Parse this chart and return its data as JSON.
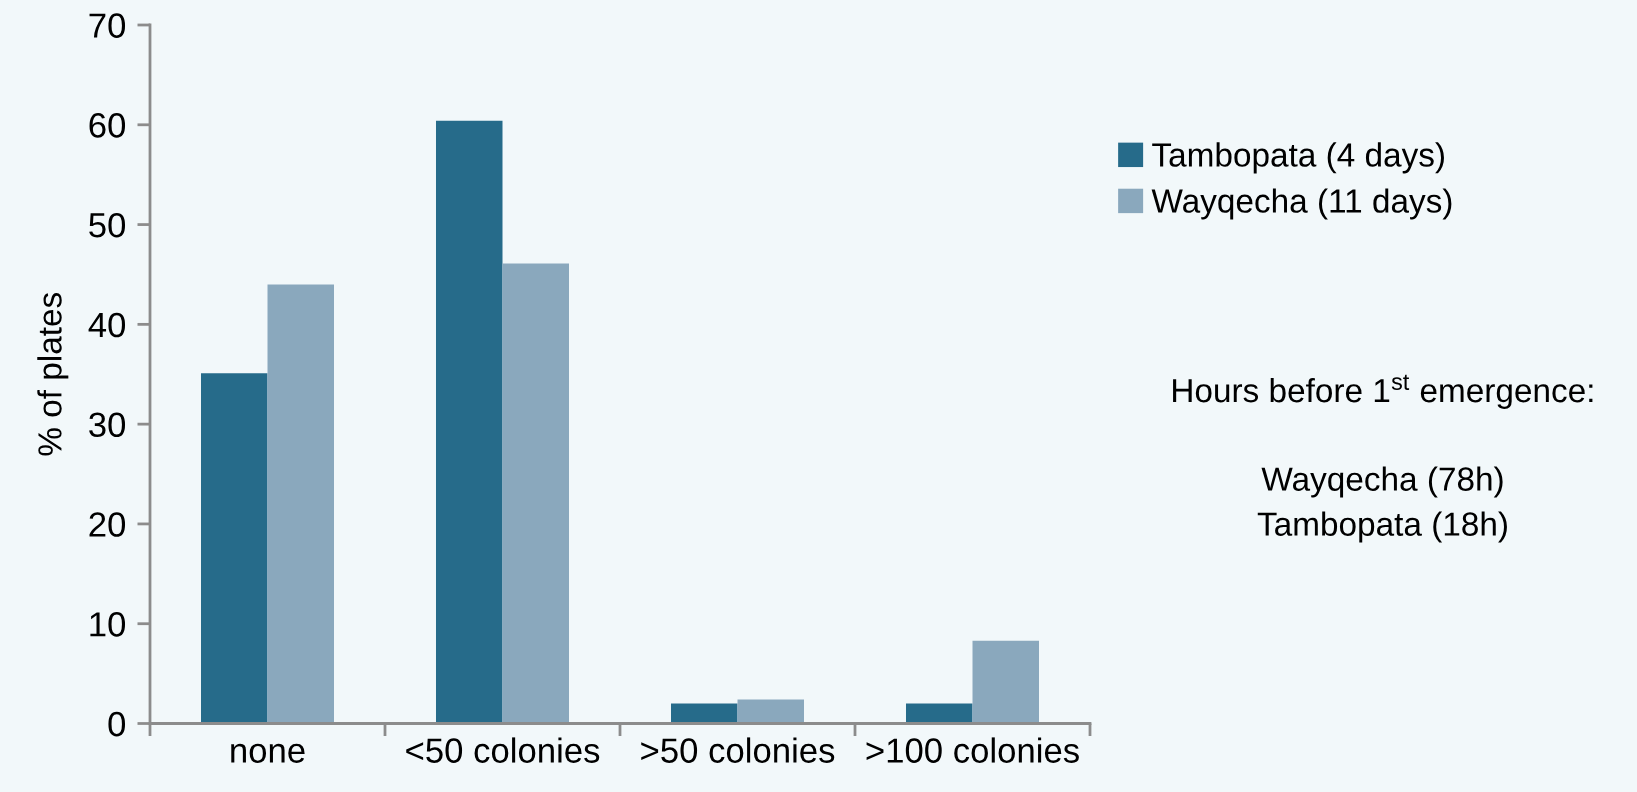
{
  "chart_data": {
    "type": "bar",
    "ylabel": "% of plates",
    "categories": [
      "none",
      "<50 colonies",
      ">50 colonies",
      ">100 colonies"
    ],
    "series": [
      {
        "name": "Tambopata (4 days)",
        "color": "#266b8a",
        "values": [
          35.1,
          60.4,
          2.0,
          2.0
        ]
      },
      {
        "name": "Wayqecha (11 days)",
        "color": "#8aa8bd",
        "values": [
          44.0,
          46.1,
          2.4,
          8.3
        ]
      }
    ],
    "ylim": [
      0,
      70
    ],
    "yticks": [
      0,
      10,
      20,
      30,
      40,
      50,
      60,
      70
    ],
    "legend": "right",
    "annotations": [
      "Hours before 1$^{st}$ emergence:",
      "Wayqecha (78h)",
      "Tambopata (18h)"
    ]
  }
}
